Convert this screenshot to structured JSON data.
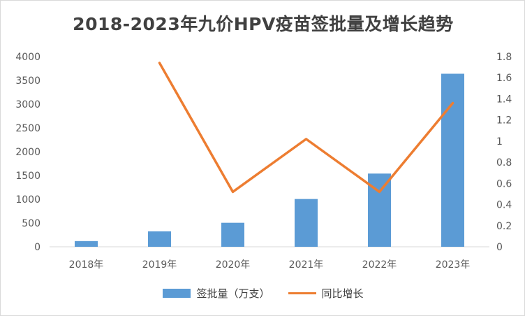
{
  "chart_data": {
    "type": "bar+line",
    "title": "2018-2023年九价HPV疫苗签批量及增长趋势",
    "categories": [
      "2018年",
      "2019年",
      "2020年",
      "2021年",
      "2022年",
      "2023年"
    ],
    "series": [
      {
        "name": "签批量（万支）",
        "type": "bar",
        "axis": "left",
        "color": "#5b9bd5",
        "values": [
          120,
          325,
          505,
          1005,
          1540,
          3640
        ]
      },
      {
        "name": "同比增长",
        "type": "line",
        "axis": "right",
        "color": "#ed7d31",
        "values": [
          null,
          1.74,
          0.52,
          1.02,
          0.52,
          1.36
        ]
      }
    ],
    "y_left": {
      "min": 0,
      "max": 4000,
      "step": 500,
      "ticks": [
        "0",
        "500",
        "1000",
        "1500",
        "2000",
        "2500",
        "3000",
        "3500",
        "4000"
      ]
    },
    "y_right": {
      "min": 0,
      "max": 1.8,
      "step": 0.2,
      "ticks": [
        "0",
        "0.2",
        "0.4",
        "0.6",
        "0.8",
        "1",
        "1.2",
        "1.4",
        "1.6",
        "1.8"
      ]
    },
    "grid": false,
    "legend_position": "bottom"
  }
}
